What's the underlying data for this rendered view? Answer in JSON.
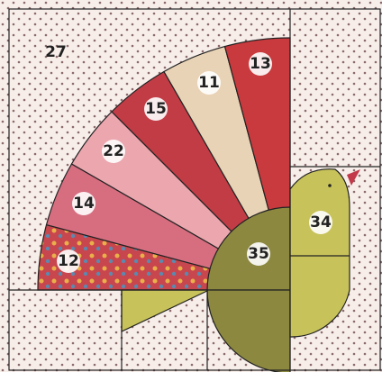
{
  "pieces": [
    {
      "label": "27"
    },
    {
      "label": "13"
    },
    {
      "label": "11"
    },
    {
      "label": "15"
    },
    {
      "label": "22"
    },
    {
      "label": "14"
    },
    {
      "label": "12"
    },
    {
      "label": "35"
    },
    {
      "label": "34"
    }
  ]
}
